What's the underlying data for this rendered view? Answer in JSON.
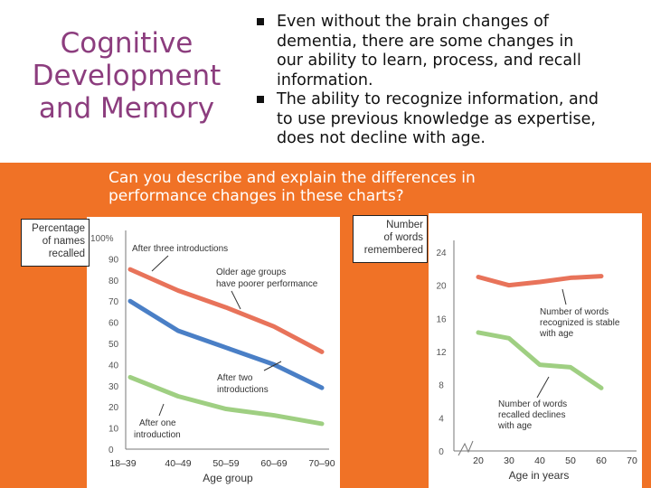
{
  "title": {
    "lines": [
      "Cognitive",
      "Development",
      "and Memory"
    ]
  },
  "bullets": [
    {
      "lines": [
        "Even without the brain changes of",
        "dementia, there are some changes in",
        "our ability to learn, process, and recall",
        "information."
      ]
    },
    {
      "lines": [
        "The ability to recognize information, and",
        "to use previous knowledge as expertise,",
        "does not decline with age."
      ]
    }
  ],
  "question": {
    "lines": [
      "Can you describe and explain the differences in",
      "performance changes in these charts?"
    ]
  },
  "colors": {
    "title": "#8c3d7e",
    "band": "#f07226",
    "red": "#e8735a",
    "blue": "#4a7fc6",
    "green": "#9fcf82"
  },
  "chart_data": [
    {
      "type": "line",
      "ylabel": [
        "Percentage",
        "of names",
        "recalled"
      ],
      "xlabel": "Age group",
      "categories": [
        "18–39",
        "40–49",
        "50–59",
        "60–69",
        "70–90"
      ],
      "y_ticks": [
        "100%",
        "90",
        "80",
        "70",
        "60",
        "50",
        "40",
        "30",
        "20",
        "10",
        "0"
      ],
      "ylim": [
        0,
        100
      ],
      "series": [
        {
          "name": "After three introductions",
          "color": "#e8735a",
          "values": [
            85,
            75,
            67,
            58,
            46
          ]
        },
        {
          "name": "After two introductions",
          "color": "#4a7fc6",
          "values": [
            70,
            56,
            48,
            40,
            29
          ]
        },
        {
          "name": "After one introduction",
          "color": "#9fcf82",
          "values": [
            34,
            25,
            19,
            16,
            12
          ]
        }
      ],
      "annotations": [
        {
          "lines": [
            "After three introductions"
          ]
        },
        {
          "lines": [
            "Older age groups",
            "have poorer performance"
          ]
        },
        {
          "lines": [
            "After two",
            "introductions"
          ]
        },
        {
          "lines": [
            "After one",
            "introduction"
          ]
        }
      ]
    },
    {
      "type": "line",
      "ylabel": [
        "Number",
        "of words",
        "remembered"
      ],
      "xlabel": "Age in years",
      "x_ticks": [
        "20",
        "30",
        "40",
        "50",
        "60",
        "70"
      ],
      "y_ticks": [
        "24",
        "20",
        "16",
        "12",
        "8",
        "4",
        "0"
      ],
      "xlim": [
        20,
        70
      ],
      "ylim": [
        0,
        24
      ],
      "series": [
        {
          "name": "Number of words recognized",
          "color": "#e8735a",
          "x": [
            20,
            30,
            40,
            50,
            60
          ],
          "values": [
            21,
            20,
            20.4,
            20.9,
            21.1
          ]
        },
        {
          "name": "Number of words recalled",
          "color": "#9fcf82",
          "x": [
            20,
            30,
            40,
            50,
            60
          ],
          "values": [
            14.3,
            13.6,
            10.4,
            10.1,
            7.6
          ]
        }
      ],
      "annotations": [
        {
          "lines": [
            "Number of words",
            "recognized is stable",
            "with age"
          ]
        },
        {
          "lines": [
            "Number of words",
            "recalled declines",
            "with age"
          ]
        }
      ]
    }
  ]
}
